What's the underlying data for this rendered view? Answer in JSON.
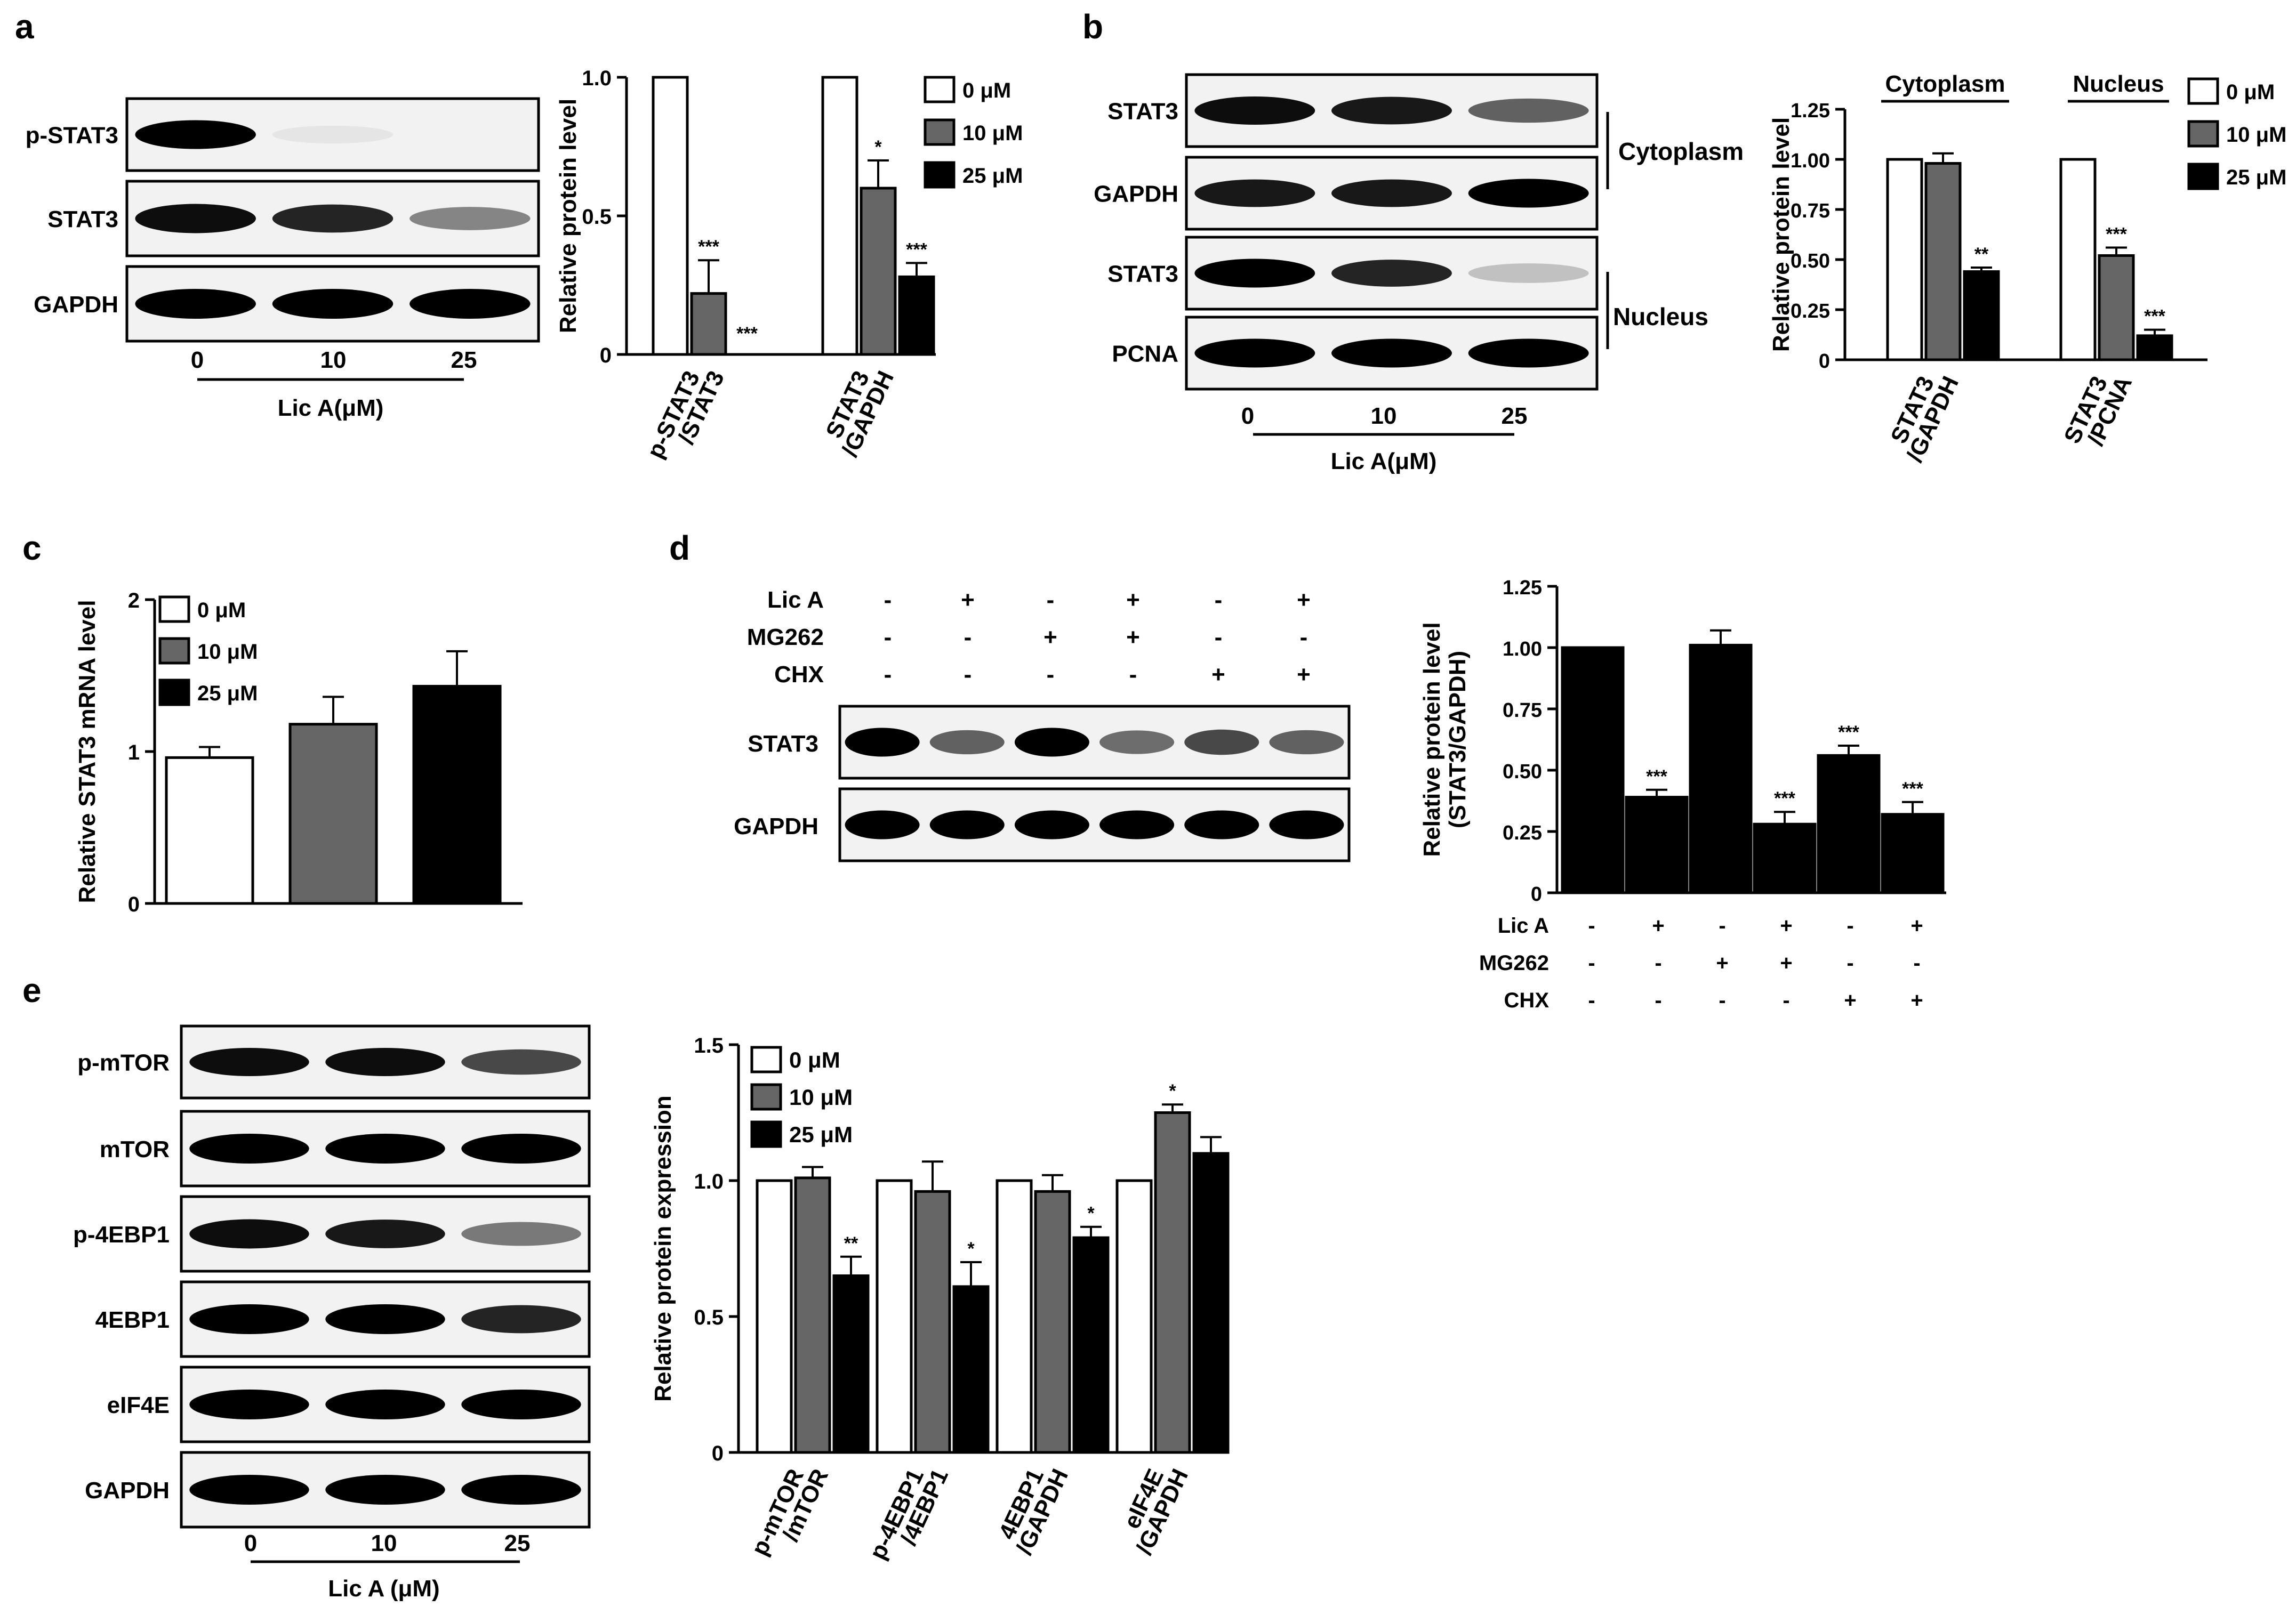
{
  "legend_levels": [
    "0 μM",
    "10 μM",
    "25 μM"
  ],
  "colors": {
    "level0": "#ffffff",
    "level10": "#666666",
    "level25": "#000000",
    "axis": "#000000"
  },
  "panels": {
    "a": {
      "letter": "a",
      "blot_labels": [
        "p-STAT3",
        "STAT3",
        "GAPDH"
      ],
      "dose_ticks": [
        "0",
        "10",
        "25"
      ],
      "dose_label": "Lic A(μM)"
    },
    "b": {
      "letter": "b",
      "blot_labels": [
        "STAT3",
        "GAPDH",
        "STAT3",
        "PCNA"
      ],
      "fraction_labels": [
        "Cytoplasm",
        "Nucleus"
      ],
      "dose_ticks": [
        "0",
        "10",
        "25"
      ],
      "dose_label": "Lic A(μM)"
    },
    "c": {
      "letter": "c"
    },
    "d": {
      "letter": "d",
      "treatment_names": [
        "Lic A",
        "MG262",
        "CHX"
      ],
      "treatment_matrix": [
        [
          "-",
          "+",
          "-",
          "+",
          "-",
          "+"
        ],
        [
          "-",
          "-",
          "+",
          "+",
          "-",
          "-"
        ],
        [
          "-",
          "-",
          "-",
          "-",
          "+",
          "+"
        ]
      ],
      "blot_labels": [
        "STAT3",
        "GAPDH"
      ]
    },
    "e": {
      "letter": "e",
      "blot_labels": [
        "p-mTOR",
        "mTOR",
        "p-4EBP1",
        "4EBP1",
        "eIF4E",
        "GAPDH"
      ],
      "dose_ticks": [
        "0",
        "10",
        "25"
      ],
      "dose_label": "Lic A (μM)"
    }
  },
  "chart_data": [
    {
      "id": "chart-a",
      "type": "bar",
      "ylabel": "Relative protein level",
      "ylim": [
        0,
        1.0
      ],
      "yticks": [
        "0",
        "0.5",
        "1.0"
      ],
      "legend": "right",
      "categories": [
        "p-STAT3\n/STAT3",
        "STAT3\n/GAPDH"
      ],
      "series": [
        {
          "name": "0 μM",
          "values": [
            1.0,
            1.0
          ],
          "errors": [
            0,
            0
          ],
          "sig": [
            "",
            ""
          ]
        },
        {
          "name": "10 μM",
          "values": [
            0.22,
            0.6
          ],
          "errors": [
            0.12,
            0.1
          ],
          "sig": [
            "***",
            "*"
          ]
        },
        {
          "name": "25 μM",
          "values": [
            0.0,
            0.28
          ],
          "errors": [
            0,
            0.05
          ],
          "sig": [
            "***",
            "***"
          ]
        }
      ]
    },
    {
      "id": "chart-b",
      "type": "bar",
      "ylabel": "Relative protein level",
      "ylim": [
        0,
        1.25
      ],
      "yticks": [
        "0",
        "0.25",
        "0.50",
        "0.75",
        "1.00",
        "1.25"
      ],
      "legend": "right",
      "group_headers": [
        "Cytoplasm",
        "Nucleus"
      ],
      "categories": [
        "STAT3\n/GAPDH",
        "STAT3\n/PCNA"
      ],
      "series": [
        {
          "name": "0 μM",
          "values": [
            1.0,
            1.0
          ],
          "errors": [
            0,
            0
          ],
          "sig": [
            "",
            ""
          ]
        },
        {
          "name": "10 μM",
          "values": [
            0.98,
            0.52
          ],
          "errors": [
            0.05,
            0.04
          ],
          "sig": [
            "",
            "***"
          ]
        },
        {
          "name": "25 μM",
          "values": [
            0.44,
            0.12
          ],
          "errors": [
            0.02,
            0.03
          ],
          "sig": [
            "**",
            "***"
          ]
        }
      ]
    },
    {
      "id": "chart-c",
      "type": "bar",
      "ylabel": "Relative STAT3 mRNA level",
      "ylim": [
        0,
        2
      ],
      "yticks": [
        "0",
        "1",
        "2"
      ],
      "legend": "top-left",
      "categories": [
        "0 μM",
        "10 μM",
        "25 μM"
      ],
      "values": [
        0.96,
        1.18,
        1.43
      ],
      "errors": [
        0.07,
        0.18,
        0.23
      ]
    },
    {
      "id": "chart-d",
      "type": "bar",
      "ylabel": "Relative protein level\n(STAT3/GAPDH)",
      "ylim": [
        0,
        1.25
      ],
      "yticks": [
        "0",
        "0.25",
        "0.50",
        "0.75",
        "1.00",
        "1.25"
      ],
      "values": [
        1.0,
        0.39,
        1.01,
        0.28,
        0.56,
        0.32
      ],
      "errors": [
        0,
        0.03,
        0.06,
        0.05,
        0.04,
        0.05
      ],
      "sig": [
        "",
        "***",
        "",
        "***",
        "***",
        "***"
      ]
    },
    {
      "id": "chart-e",
      "type": "bar",
      "ylabel": "Relative protein expression",
      "ylim": [
        0,
        1.5
      ],
      "yticks": [
        "0",
        "0.5",
        "1.0",
        "1.5"
      ],
      "legend": "top-left",
      "categories": [
        "p-mTOR\n/mTOR",
        "p-4EBP1\n/4EBP1",
        "4EBP1\n/GAPDH",
        "eIF4E\n/GAPDH"
      ],
      "series": [
        {
          "name": "0 μM",
          "values": [
            1.0,
            1.0,
            1.0,
            1.0
          ],
          "errors": [
            0,
            0,
            0,
            0
          ],
          "sig": [
            "",
            "",
            "",
            ""
          ]
        },
        {
          "name": "10 μM",
          "values": [
            1.01,
            0.96,
            0.96,
            1.25
          ],
          "errors": [
            0.04,
            0.11,
            0.06,
            0.03
          ],
          "sig": [
            "",
            "",
            "",
            "*"
          ]
        },
        {
          "name": "25 μM",
          "values": [
            0.65,
            0.61,
            0.79,
            1.1
          ],
          "errors": [
            0.07,
            0.09,
            0.04,
            0.06
          ],
          "sig": [
            "**",
            "*",
            "*",
            ""
          ]
        }
      ]
    }
  ]
}
